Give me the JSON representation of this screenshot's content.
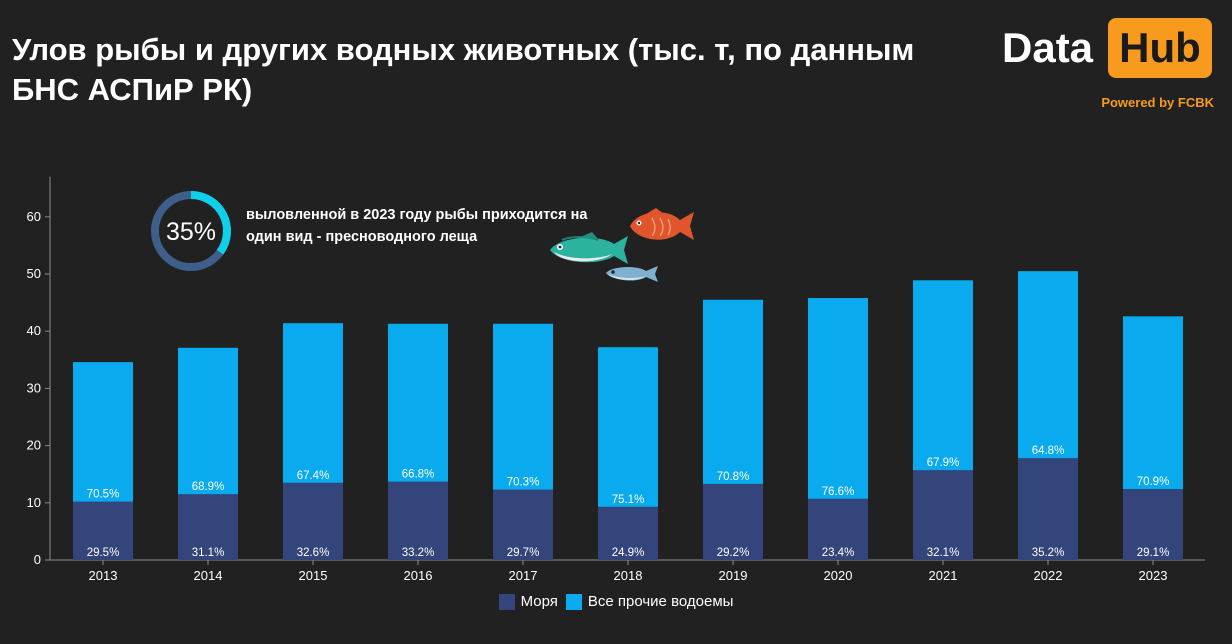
{
  "header": {
    "title": "Улов рыбы и других водных животных (тыс. т, по данным БНС АСПиР РК)",
    "logo_left": "Data",
    "logo_right": "Hub",
    "powered_by": "Powered by FCBK"
  },
  "callout": {
    "percent_label": "35%",
    "percent_value": 0.35,
    "text": "выловленной в 2023 году рыбы приходится на один вид - пресноводного леща"
  },
  "colors": {
    "background": "#212121",
    "seas": "#33457a",
    "other": "#0aabee",
    "ring_track": "#3d5f8a",
    "ring_fill": "#0fd0e8",
    "brand_orange": "#f79a1e",
    "axis_text": "#ffffff"
  },
  "icons": [
    "orange-fish-icon",
    "teal-fish-icon",
    "small-blue-fish-icon"
  ],
  "chart_data": {
    "type": "bar",
    "stacked": true,
    "categories": [
      "2013",
      "2014",
      "2015",
      "2016",
      "2017",
      "2018",
      "2019",
      "2020",
      "2021",
      "2022",
      "2023"
    ],
    "series": [
      {
        "name": "Моря",
        "values": [
          10.2,
          11.5,
          13.5,
          13.7,
          12.3,
          9.3,
          13.3,
          10.7,
          15.7,
          17.8,
          12.4
        ],
        "labels": [
          "29.5%",
          "31.1%",
          "32.6%",
          "33.2%",
          "29.7%",
          "24.9%",
          "29.2%",
          "23.4%",
          "32.1%",
          "35.2%",
          "29.1%"
        ]
      },
      {
        "name": "Все прочие водоемы",
        "values": [
          24.4,
          25.6,
          27.9,
          27.6,
          29.0,
          27.9,
          32.2,
          35.1,
          33.2,
          32.7,
          30.2
        ],
        "labels": [
          "70.5%",
          "68.9%",
          "67.4%",
          "66.8%",
          "70.3%",
          "75.1%",
          "70.8%",
          "76.6%",
          "67.9%",
          "64.8%",
          "70.9%"
        ]
      }
    ],
    "yticks": [
      0,
      10,
      20,
      30,
      40,
      50,
      60
    ],
    "ylim": [
      0,
      67
    ],
    "grid": false,
    "legend_position": "bottom-center"
  }
}
